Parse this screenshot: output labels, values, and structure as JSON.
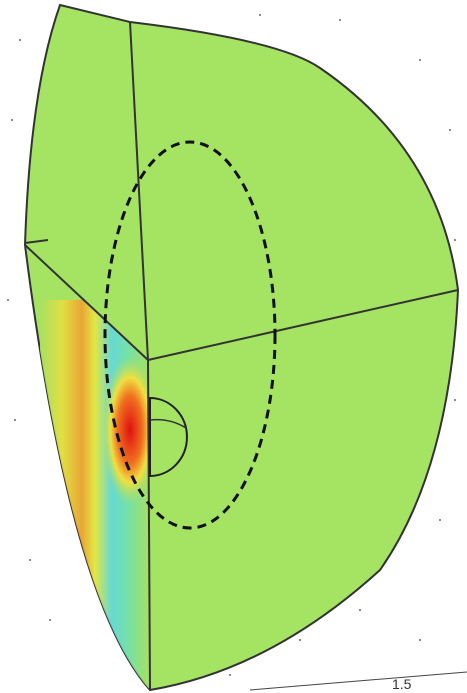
{
  "axis_tick_label": "1.5"
}
